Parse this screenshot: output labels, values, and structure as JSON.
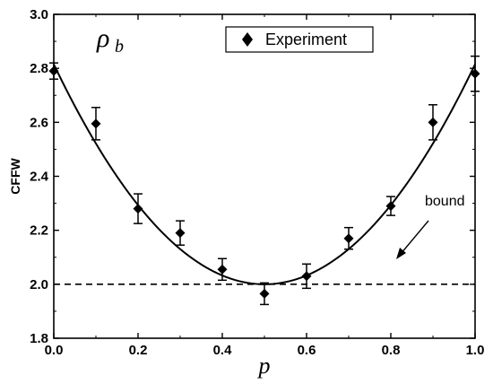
{
  "chart_data": {
    "type": "scatter",
    "corner_label": {
      "main": "ρ",
      "sub": "b"
    },
    "xlabel": "p",
    "ylabel": "CFFW",
    "xlim": [
      0.0,
      1.0
    ],
    "ylim": [
      1.8,
      3.0
    ],
    "x_ticks": [
      "0.0",
      "0.2",
      "0.4",
      "0.6",
      "0.8",
      "1.0"
    ],
    "y_ticks": [
      "1.8",
      "2.0",
      "2.2",
      "2.4",
      "2.6",
      "2.8",
      "3.0"
    ],
    "legend": {
      "label": "Experiment",
      "position": "top-right"
    },
    "series": [
      {
        "name": "Experiment",
        "marker": "diamond",
        "x": [
          0.0,
          0.1,
          0.2,
          0.3,
          0.4,
          0.5,
          0.6,
          0.7,
          0.8,
          0.9,
          1.0
        ],
        "y": [
          2.79,
          2.595,
          2.28,
          2.19,
          2.055,
          1.965,
          2.03,
          2.17,
          2.29,
          2.6,
          2.78
        ],
        "yerr": [
          0.03,
          0.06,
          0.055,
          0.045,
          0.04,
          0.04,
          0.045,
          0.04,
          0.035,
          0.065,
          0.065
        ]
      }
    ],
    "fit_curve": {
      "style": "solid",
      "y_at_0": 2.815,
      "y_at_0_5": 2.0,
      "y_at_1": 2.815
    },
    "reference_line": {
      "y": 2.0,
      "style": "dashed",
      "label": "bound"
    }
  }
}
